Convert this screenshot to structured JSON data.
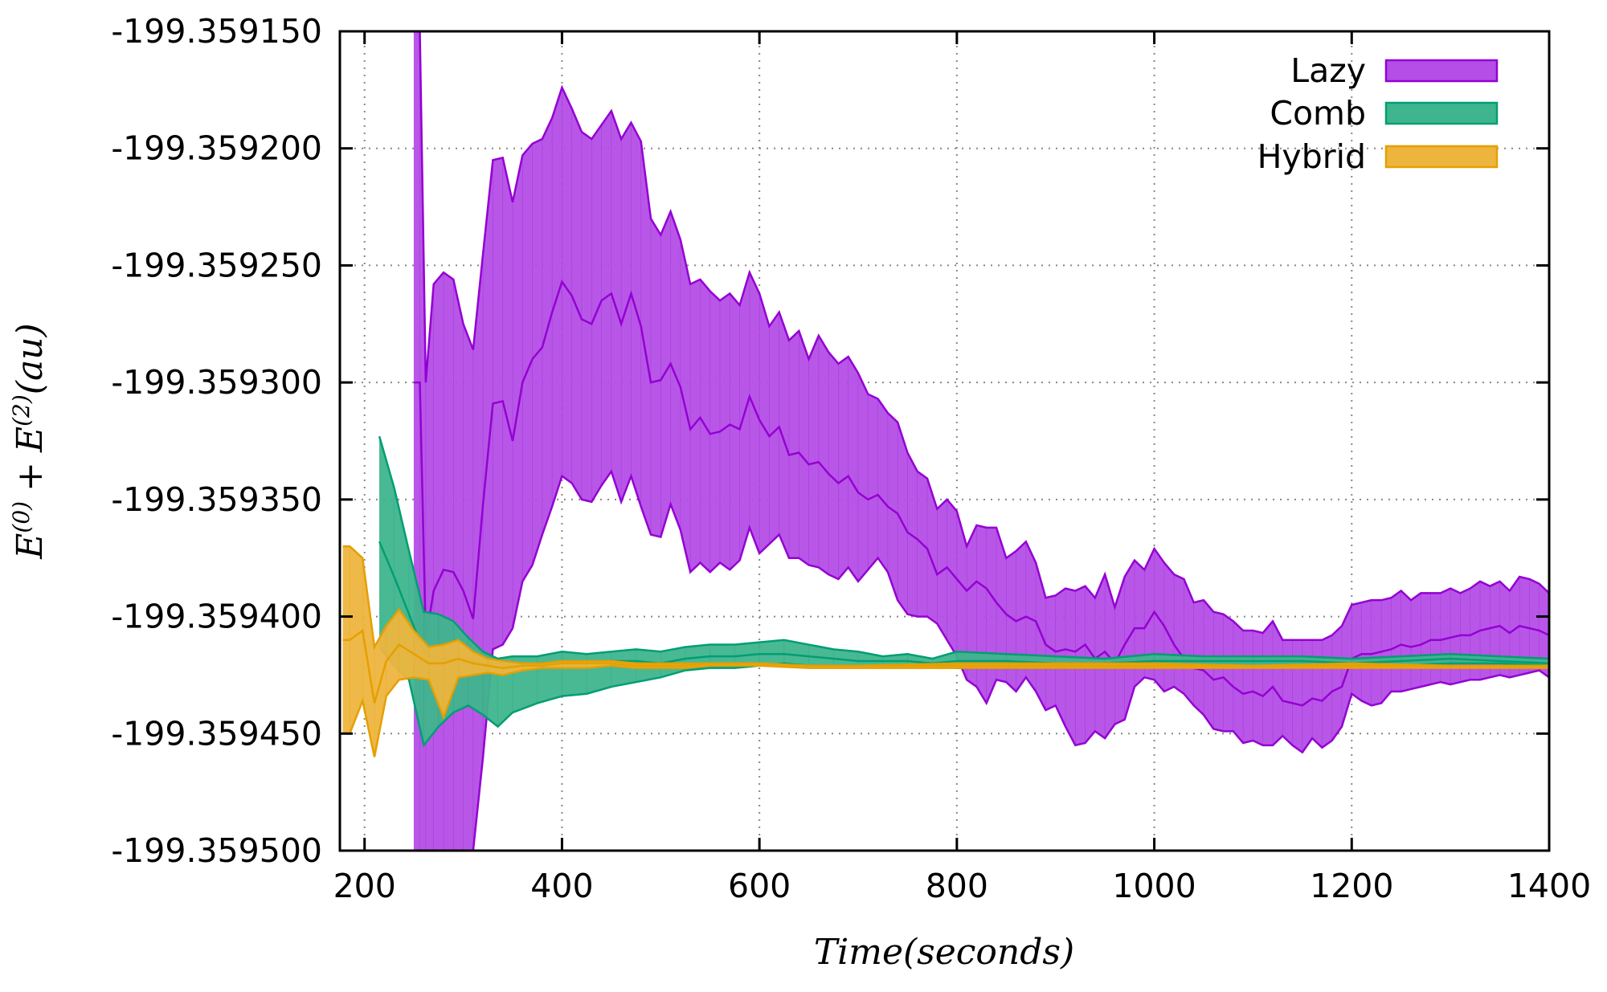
{
  "chart_data": {
    "type": "area",
    "title": "",
    "xlabel": "Time(seconds)",
    "ylabel": "E(0) + E(2)(au)",
    "ylabel_parts": {
      "e0_base": "E",
      "e0_sup": "(0)",
      "plus": "+",
      "e2_base": "E",
      "e2_sup": "(2)",
      "units": "(au)"
    },
    "xlim": [
      175,
      1400
    ],
    "ylim": [
      -199.3595,
      -199.35915
    ],
    "x_ticks": [
      200,
      400,
      600,
      800,
      1000,
      1200,
      1400
    ],
    "x_tick_labels": [
      "200",
      "400",
      "600",
      "800",
      "1000",
      "1200",
      "1400"
    ],
    "y_ticks": [
      -199.35915,
      -199.3592,
      -199.35925,
      -199.3593,
      -199.35935,
      -199.3594,
      -199.35945,
      -199.3595
    ],
    "y_tick_labels": [
      "-199.359150",
      "-199.359200",
      "-199.359250",
      "-199.359300",
      "-199.359350",
      "-199.359400",
      "-199.359450",
      "-199.359500"
    ],
    "grid": true,
    "legend_position": "top-right",
    "series": [
      {
        "name": "Lazy",
        "color": "#9400d3",
        "fill": "#b44ee6",
        "x": [
          250,
          256,
          262,
          270,
          280,
          290,
          300,
          310,
          320,
          330,
          340,
          350,
          360,
          370,
          380,
          390,
          400,
          410,
          420,
          430,
          440,
          450,
          460,
          470,
          480,
          490,
          500,
          510,
          520,
          530,
          540,
          550,
          560,
          570,
          580,
          590,
          600,
          610,
          620,
          630,
          640,
          650,
          660,
          670,
          680,
          690,
          700,
          710,
          720,
          730,
          740,
          750,
          760,
          770,
          780,
          790,
          800,
          810,
          820,
          830,
          840,
          850,
          860,
          870,
          880,
          890,
          900,
          910,
          920,
          930,
          940,
          950,
          960,
          970,
          980,
          990,
          1000,
          1010,
          1020,
          1030,
          1040,
          1050,
          1060,
          1070,
          1080,
          1090,
          1100,
          1110,
          1120,
          1130,
          1140,
          1150,
          1160,
          1170,
          1180,
          1190,
          1200,
          1210,
          1220,
          1230,
          1240,
          1250,
          1260,
          1270,
          1280,
          1290,
          1300,
          1310,
          1320,
          1330,
          1340,
          1350,
          1360,
          1370,
          1380,
          1390,
          1400
        ],
        "upper": [
          -199.35915,
          -199.35915,
          -199.3593,
          -199.359258,
          -199.359253,
          -199.359256,
          -199.359275,
          -199.359286,
          -199.359245,
          -199.359205,
          -199.359204,
          -199.359223,
          -199.359203,
          -199.359198,
          -199.359196,
          -199.359187,
          -199.359174,
          -199.359183,
          -199.359193,
          -199.359196,
          -199.35919,
          -199.359184,
          -199.359196,
          -199.359189,
          -199.359197,
          -199.35923,
          -199.359237,
          -199.359227,
          -199.359239,
          -199.359258,
          -199.359256,
          -199.359261,
          -199.359265,
          -199.359262,
          -199.359267,
          -199.359253,
          -199.359262,
          -199.359276,
          -199.35927,
          -199.359282,
          -199.359278,
          -199.35929,
          -199.35928,
          -199.359287,
          -199.359292,
          -199.359289,
          -199.359296,
          -199.359305,
          -199.359307,
          -199.359313,
          -199.359317,
          -199.35933,
          -199.359338,
          -199.359341,
          -199.359354,
          -199.35935,
          -199.359355,
          -199.35937,
          -199.359361,
          -199.359362,
          -199.359362,
          -199.359375,
          -199.359372,
          -199.359368,
          -199.359377,
          -199.359392,
          -199.359391,
          -199.359388,
          -199.359389,
          -199.359387,
          -199.359392,
          -199.359382,
          -199.359396,
          -199.359383,
          -199.359376,
          -199.35938,
          -199.359371,
          -199.359377,
          -199.359382,
          -199.359384,
          -199.359394,
          -199.359393,
          -199.359398,
          -199.359399,
          -199.359402,
          -199.359406,
          -199.359406,
          -199.359407,
          -199.359402,
          -199.35941,
          -199.35941,
          -199.35941,
          -199.35941,
          -199.35941,
          -199.359408,
          -199.359404,
          -199.359395,
          -199.359394,
          -199.359393,
          -199.359393,
          -199.359392,
          -199.359389,
          -199.359393,
          -199.35939,
          -199.35939,
          -199.35939,
          -199.359388,
          -199.35939,
          -199.359388,
          -199.359385,
          -199.359387,
          -199.359385,
          -199.359389,
          -199.359383,
          -199.359384,
          -199.359386,
          -199.35939
        ],
        "mid": [
          -199.3593,
          -199.3593,
          -199.35941,
          -199.359389,
          -199.35938,
          -199.359381,
          -199.359389,
          -199.359401,
          -199.359352,
          -199.359309,
          -199.359308,
          -199.359325,
          -199.3593,
          -199.35929,
          -199.359285,
          -199.35927,
          -199.359257,
          -199.359263,
          -199.359273,
          -199.359275,
          -199.359265,
          -199.359262,
          -199.359275,
          -199.359262,
          -199.359276,
          -199.3593,
          -199.359299,
          -199.359292,
          -199.359302,
          -199.35932,
          -199.359315,
          -199.359322,
          -199.359321,
          -199.359318,
          -199.35932,
          -199.359306,
          -199.359316,
          -199.359323,
          -199.359319,
          -199.359331,
          -199.35933,
          -199.359335,
          -199.359334,
          -199.359339,
          -199.359343,
          -199.35934,
          -199.359347,
          -199.35935,
          -199.359348,
          -199.359353,
          -199.359356,
          -199.359364,
          -199.359367,
          -199.359371,
          -199.359382,
          -199.359379,
          -199.359384,
          -199.359389,
          -199.359385,
          -199.359388,
          -199.359394,
          -199.359399,
          -199.359402,
          -199.3594,
          -199.359402,
          -199.359412,
          -199.359415,
          -199.359414,
          -199.359415,
          -199.359412,
          -199.359418,
          -199.359415,
          -199.35942,
          -199.359412,
          -199.359405,
          -199.359405,
          -199.359398,
          -199.359404,
          -199.359412,
          -199.359418,
          -199.359422,
          -199.359423,
          -199.359427,
          -199.359426,
          -199.35943,
          -199.359433,
          -199.359432,
          -199.359434,
          -199.35943,
          -199.359436,
          -199.359437,
          -199.359438,
          -199.359435,
          -199.359436,
          -199.359432,
          -199.35943,
          -199.359418,
          -199.359416,
          -199.359416,
          -199.359415,
          -199.359414,
          -199.359412,
          -199.359413,
          -199.359412,
          -199.35941,
          -199.35941,
          -199.359409,
          -199.359408,
          -199.359408,
          -199.359406,
          -199.359405,
          -199.359404,
          -199.359407,
          -199.359404,
          -199.359405,
          -199.359406,
          -199.359408
        ],
        "lower": [
          -199.3595,
          -199.3595,
          -199.3595,
          -199.3595,
          -199.3595,
          -199.3595,
          -199.3595,
          -199.3595,
          -199.35946,
          -199.359414,
          -199.359412,
          -199.359405,
          -199.359385,
          -199.359378,
          -199.359365,
          -199.359353,
          -199.35934,
          -199.359343,
          -199.35935,
          -199.359351,
          -199.359344,
          -199.359338,
          -199.359351,
          -199.35934,
          -199.359353,
          -199.359365,
          -199.359366,
          -199.359352,
          -199.359363,
          -199.359381,
          -199.359377,
          -199.359381,
          -199.359377,
          -199.35938,
          -199.359376,
          -199.359362,
          -199.359373,
          -199.359369,
          -199.359365,
          -199.359375,
          -199.359375,
          -199.359378,
          -199.359379,
          -199.359382,
          -199.359384,
          -199.359379,
          -199.359385,
          -199.35938,
          -199.359375,
          -199.359381,
          -199.359393,
          -199.359399,
          -199.3594,
          -199.3594,
          -199.359403,
          -199.35941,
          -199.359417,
          -199.359427,
          -199.35943,
          -199.359437,
          -199.359427,
          -199.359428,
          -199.359432,
          -199.359426,
          -199.359432,
          -199.35944,
          -199.359438,
          -199.359447,
          -199.359455,
          -199.359454,
          -199.359449,
          -199.359452,
          -199.359446,
          -199.359444,
          -199.35943,
          -199.359426,
          -199.359427,
          -199.359432,
          -199.35943,
          -199.359433,
          -199.359438,
          -199.359442,
          -199.359448,
          -199.359449,
          -199.359449,
          -199.359454,
          -199.359453,
          -199.359455,
          -199.359455,
          -199.359451,
          -199.359455,
          -199.359458,
          -199.359452,
          -199.359456,
          -199.359453,
          -199.359447,
          -199.359433,
          -199.359436,
          -199.359438,
          -199.359437,
          -199.359432,
          -199.359432,
          -199.359431,
          -199.35943,
          -199.359429,
          -199.359428,
          -199.359429,
          -199.359428,
          -199.359427,
          -199.359427,
          -199.359426,
          -199.359425,
          -199.359426,
          -199.359425,
          -199.359424,
          -199.359423,
          -199.359426
        ]
      },
      {
        "name": "Comb",
        "color": "#009e73",
        "fill": "#3fb58d",
        "x": [
          215,
          230,
          245,
          260,
          275,
          290,
          305,
          320,
          335,
          350,
          375,
          400,
          425,
          450,
          475,
          500,
          525,
          550,
          575,
          600,
          625,
          650,
          675,
          700,
          725,
          750,
          775,
          800,
          850,
          900,
          950,
          1000,
          1050,
          1100,
          1150,
          1200,
          1250,
          1300,
          1350,
          1400
        ],
        "upper": [
          -199.359323,
          -199.359345,
          -199.359372,
          -199.359398,
          -199.359399,
          -199.359402,
          -199.359409,
          -199.359415,
          -199.359418,
          -199.359417,
          -199.359417,
          -199.359415,
          -199.359416,
          -199.359415,
          -199.359414,
          -199.359415,
          -199.359413,
          -199.359412,
          -199.359412,
          -199.359411,
          -199.35941,
          -199.359412,
          -199.359414,
          -199.359415,
          -199.359417,
          -199.359416,
          -199.359418,
          -199.359415,
          -199.359416,
          -199.359417,
          -199.359418,
          -199.359416,
          -199.359417,
          -199.359417,
          -199.359417,
          -199.359418,
          -199.359417,
          -199.359416,
          -199.359417,
          -199.359418
        ],
        "mid": [
          -199.359368,
          -199.359383,
          -199.359399,
          -199.359415,
          -199.359418,
          -199.359418,
          -199.359419,
          -199.35942,
          -199.35942,
          -199.359421,
          -199.35942,
          -199.35942,
          -199.35942,
          -199.359419,
          -199.359419,
          -199.35942,
          -199.359418,
          -199.359417,
          -199.359417,
          -199.359416,
          -199.359416,
          -199.359417,
          -199.359418,
          -199.359419,
          -199.359419,
          -199.359419,
          -199.35942,
          -199.359419,
          -199.359419,
          -199.35942,
          -199.35942,
          -199.359419,
          -199.359419,
          -199.359419,
          -199.359419,
          -199.35942,
          -199.359419,
          -199.359418,
          -199.359419,
          -199.35942
        ],
        "lower": [
          -199.359413,
          -199.359421,
          -199.359427,
          -199.359455,
          -199.359447,
          -199.359441,
          -199.359438,
          -199.359442,
          -199.359447,
          -199.359441,
          -199.359437,
          -199.359434,
          -199.359433,
          -199.35943,
          -199.359428,
          -199.359426,
          -199.359423,
          -199.359422,
          -199.359422,
          -199.359421,
          -199.35942,
          -199.359421,
          -199.359421,
          -199.359421,
          -199.359421,
          -199.359421,
          -199.359421,
          -199.359422,
          -199.359422,
          -199.359422,
          -199.359422,
          -199.359421,
          -199.359421,
          -199.359421,
          -199.359421,
          -199.359421,
          -199.359421,
          -199.35942,
          -199.35942,
          -199.359421
        ]
      },
      {
        "name": "Hybrid",
        "color": "#e69f00",
        "fill": "#edb53e",
        "x": [
          178,
          185,
          198,
          210,
          222,
          235,
          250,
          265,
          280,
          295,
          310,
          325,
          340,
          360,
          380,
          400,
          425,
          450,
          475,
          500,
          525,
          550,
          600,
          650,
          700,
          800,
          900,
          1000,
          1100,
          1200,
          1300,
          1400
        ],
        "upper": [
          -199.35937,
          -199.35937,
          -199.359375,
          -199.359413,
          -199.359404,
          -199.359397,
          -199.359406,
          -199.359413,
          -199.359412,
          -199.35941,
          -199.359415,
          -199.359418,
          -199.359419,
          -199.35942,
          -199.35942,
          -199.359419,
          -199.359419,
          -199.359419,
          -199.35942,
          -199.35942,
          -199.35942,
          -199.35942,
          -199.35942,
          -199.359421,
          -199.359421,
          -199.35942,
          -199.35942,
          -199.35942,
          -199.359421,
          -199.35942,
          -199.359421,
          -199.359421
        ],
        "mid": [
          -199.35941,
          -199.35941,
          -199.359406,
          -199.359437,
          -199.359419,
          -199.359412,
          -199.359416,
          -199.35942,
          -199.35942,
          -199.359418,
          -199.35942,
          -199.359421,
          -199.359422,
          -199.359421,
          -199.359421,
          -199.35942,
          -199.35942,
          -199.35942,
          -199.359421,
          -199.359421,
          -199.359421,
          -199.35942,
          -199.35942,
          -199.359421,
          -199.359421,
          -199.359421,
          -199.359421,
          -199.359421,
          -199.359421,
          -199.359421,
          -199.359421,
          -199.359421
        ],
        "lower": [
          -199.35945,
          -199.35945,
          -199.359436,
          -199.35946,
          -199.359434,
          -199.359427,
          -199.359426,
          -199.359427,
          -199.359443,
          -199.359426,
          -199.359425,
          -199.359424,
          -199.359425,
          -199.359423,
          -199.359422,
          -199.359422,
          -199.359422,
          -199.359421,
          -199.359422,
          -199.359422,
          -199.359422,
          -199.359421,
          -199.359421,
          -199.359422,
          -199.359422,
          -199.359422,
          -199.359422,
          -199.359422,
          -199.359422,
          -199.359422,
          -199.359422,
          -199.359422
        ]
      }
    ]
  }
}
